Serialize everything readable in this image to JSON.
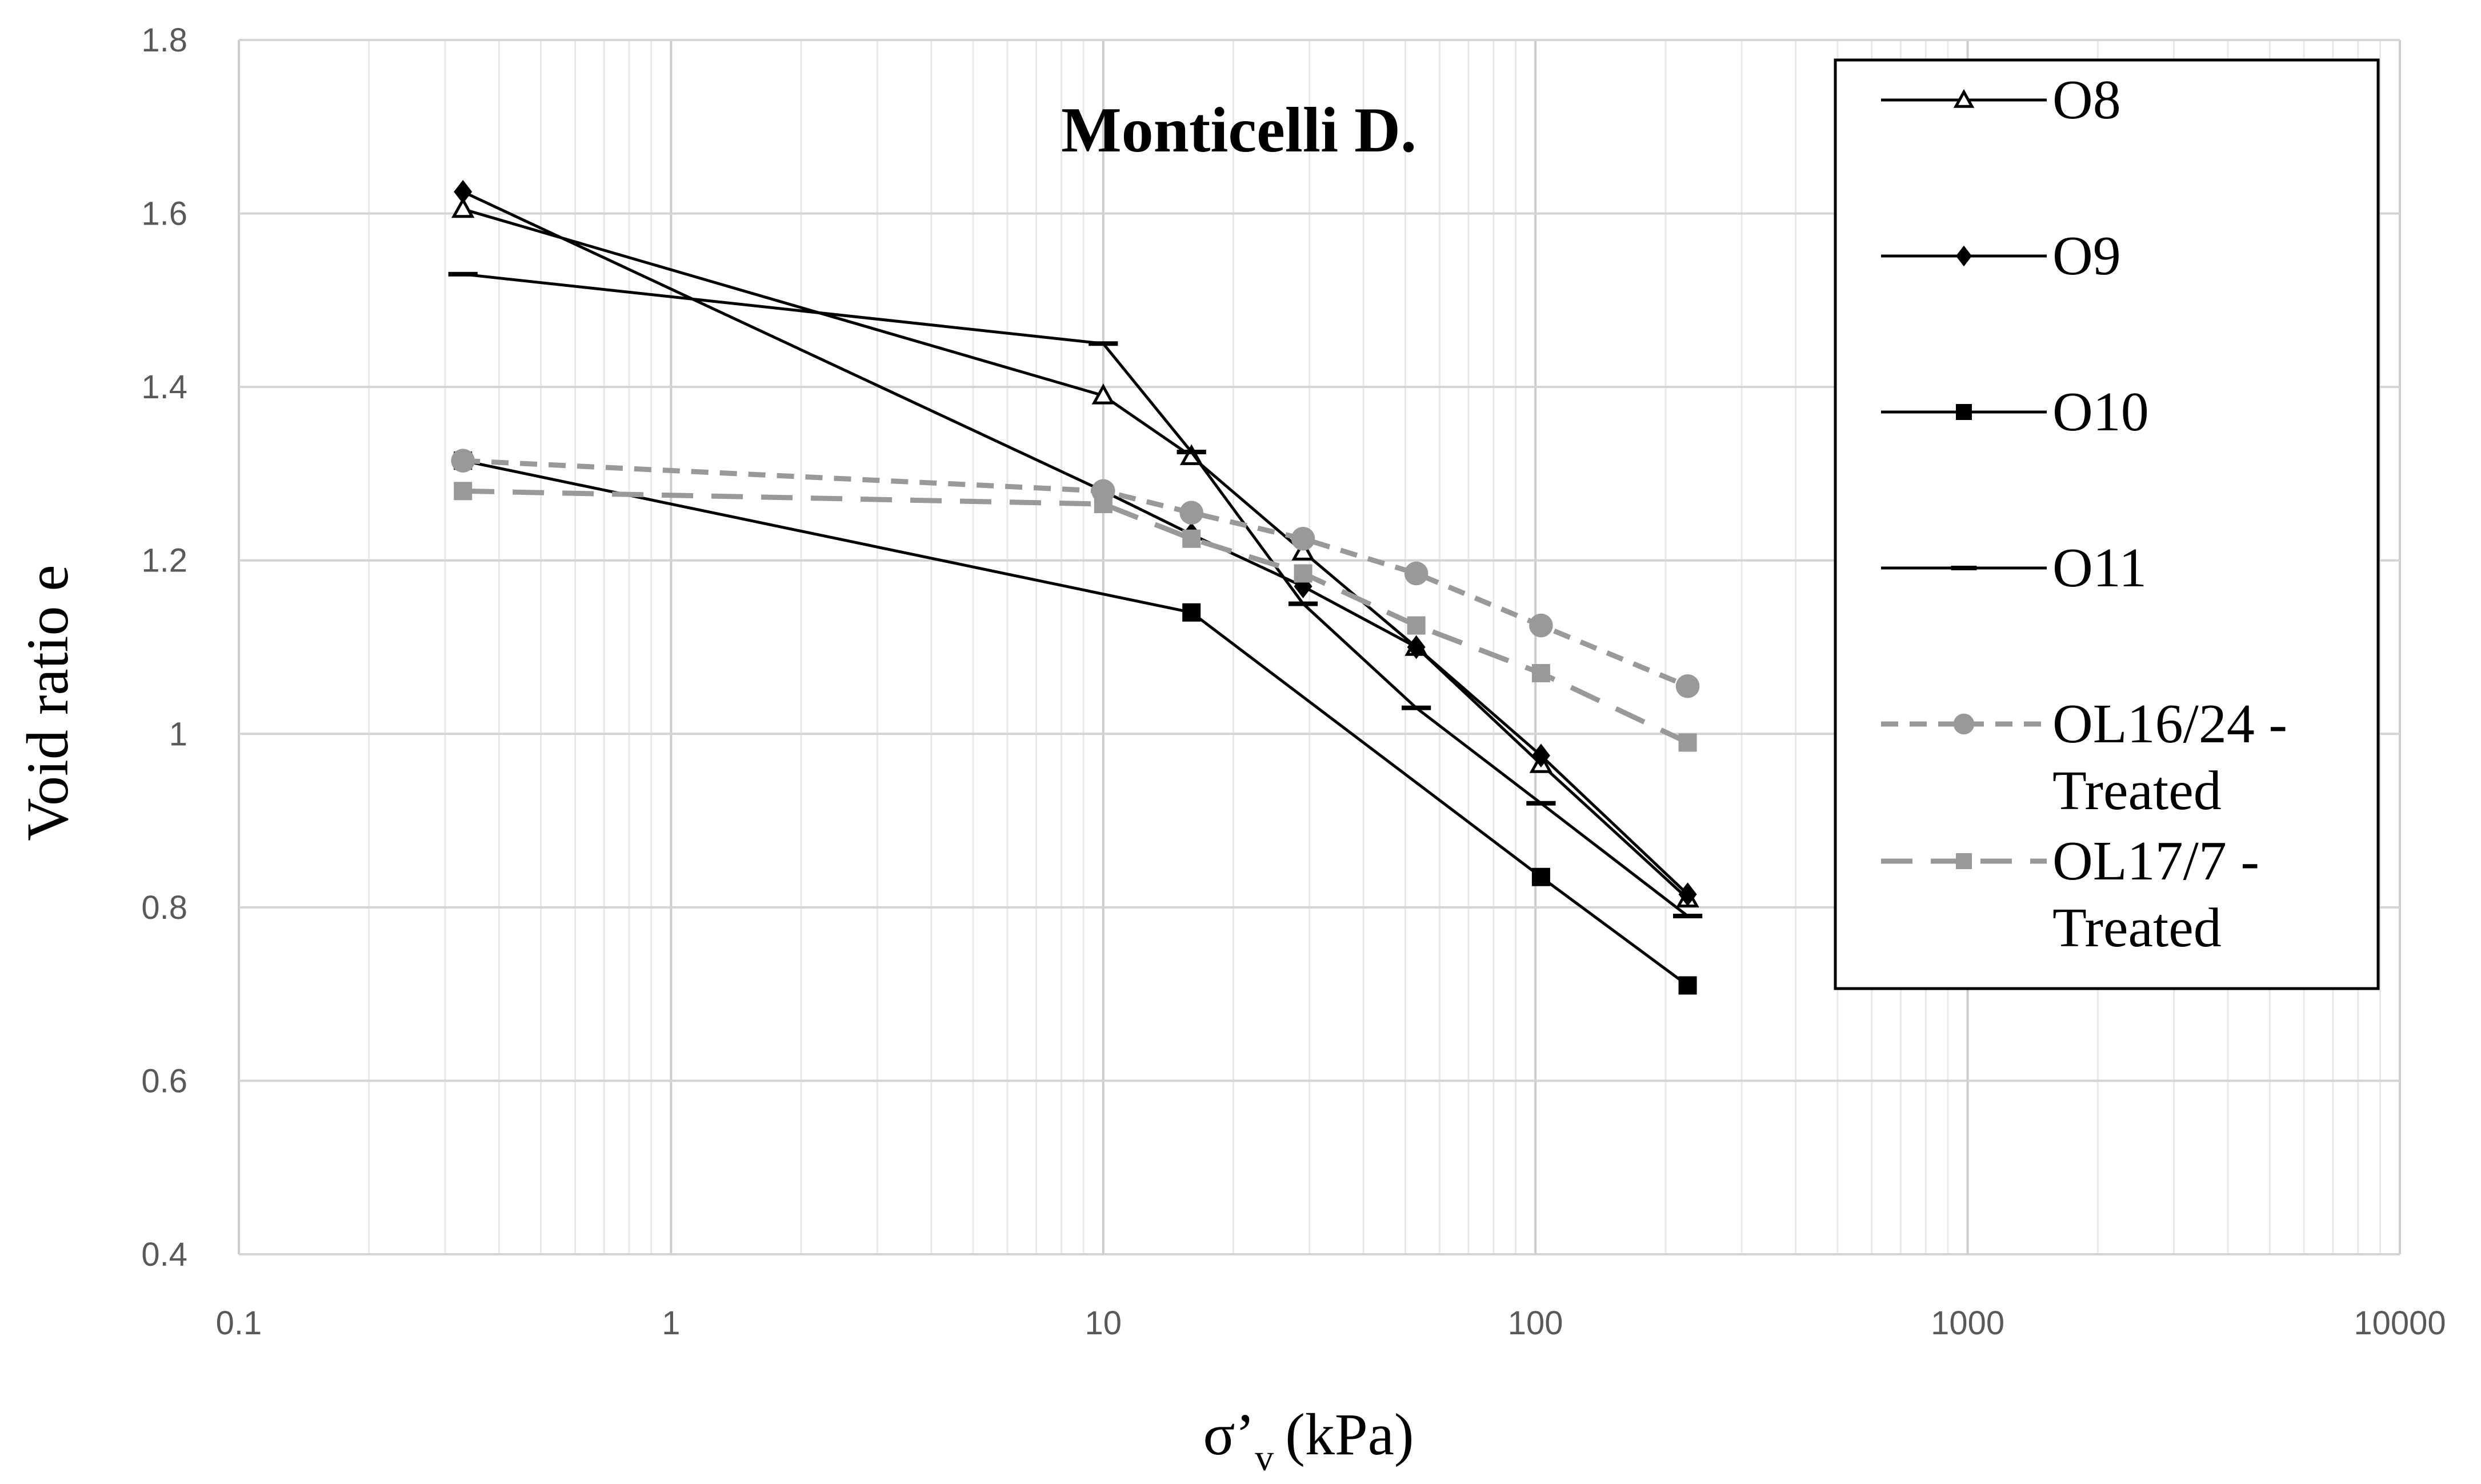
{
  "chart_data": {
    "type": "line",
    "title": "Monticelli D.",
    "xlabel": "σ’",
    "xlabel_sub": "v",
    "xlabel_unit": "(kPa)",
    "ylabel": "Void ratio e",
    "xscale": "log",
    "xlim": [
      0.1,
      10000
    ],
    "ylim": [
      0.4,
      1.8
    ],
    "x_ticks": [
      0.1,
      1,
      10,
      100,
      1000,
      10000
    ],
    "x_tick_labels": [
      "0.1",
      "1",
      "10",
      "100",
      "1000",
      "10000"
    ],
    "y_ticks": [
      0.4,
      0.6,
      0.8,
      1.0,
      1.2,
      1.4,
      1.6,
      1.8
    ],
    "y_tick_labels": [
      "0.4",
      "0.6",
      "0.8",
      "1",
      "1.2",
      "1.4",
      "1.6",
      "1.8"
    ],
    "grid": true,
    "legend_position": "top-right",
    "series": [
      {
        "name": "O8",
        "legend_lines": [
          "O8"
        ],
        "color": "#000000",
        "marker": "triangle",
        "dashed": false,
        "x": [
          0.33,
          10,
          16,
          29,
          53,
          103,
          225
        ],
        "y": [
          1.605,
          1.39,
          1.32,
          1.21,
          1.1,
          0.965,
          0.81
        ]
      },
      {
        "name": "O9",
        "legend_lines": [
          "O9"
        ],
        "color": "#000000",
        "marker": "diamond",
        "dashed": false,
        "x": [
          0.33,
          10,
          16,
          29,
          53,
          103,
          225
        ],
        "y": [
          1.625,
          1.28,
          1.23,
          1.17,
          1.1,
          0.975,
          0.815
        ]
      },
      {
        "name": "O10",
        "legend_lines": [
          "O10"
        ],
        "color": "#000000",
        "marker": "square",
        "dashed": false,
        "x": [
          0.33,
          16,
          103,
          225
        ],
        "y": [
          1.315,
          1.14,
          0.835,
          0.71
        ]
      },
      {
        "name": "O11",
        "legend_lines": [
          "O11"
        ],
        "color": "#000000",
        "marker": "dash",
        "dashed": false,
        "x": [
          0.33,
          10,
          16,
          29,
          53,
          103,
          225
        ],
        "y": [
          1.53,
          1.45,
          1.325,
          1.15,
          1.03,
          0.92,
          0.79
        ]
      },
      {
        "name": "OL16/24 - Treated",
        "legend_lines": [
          "OL16/24 -",
          "Treated"
        ],
        "color": "#999999",
        "marker": "circle",
        "dashed": true,
        "x": [
          0.33,
          10,
          16,
          29,
          53,
          103,
          225
        ],
        "y": [
          1.315,
          1.28,
          1.255,
          1.225,
          1.185,
          1.125,
          1.055
        ]
      },
      {
        "name": "OL17/7 - Treated",
        "legend_lines": [
          "OL17/7 -",
          "Treated"
        ],
        "color": "#999999",
        "marker": "square",
        "dashed": true,
        "x": [
          0.33,
          10,
          16,
          29,
          53,
          103,
          225
        ],
        "y": [
          1.28,
          1.265,
          1.225,
          1.185,
          1.125,
          1.07,
          0.99
        ]
      }
    ]
  }
}
